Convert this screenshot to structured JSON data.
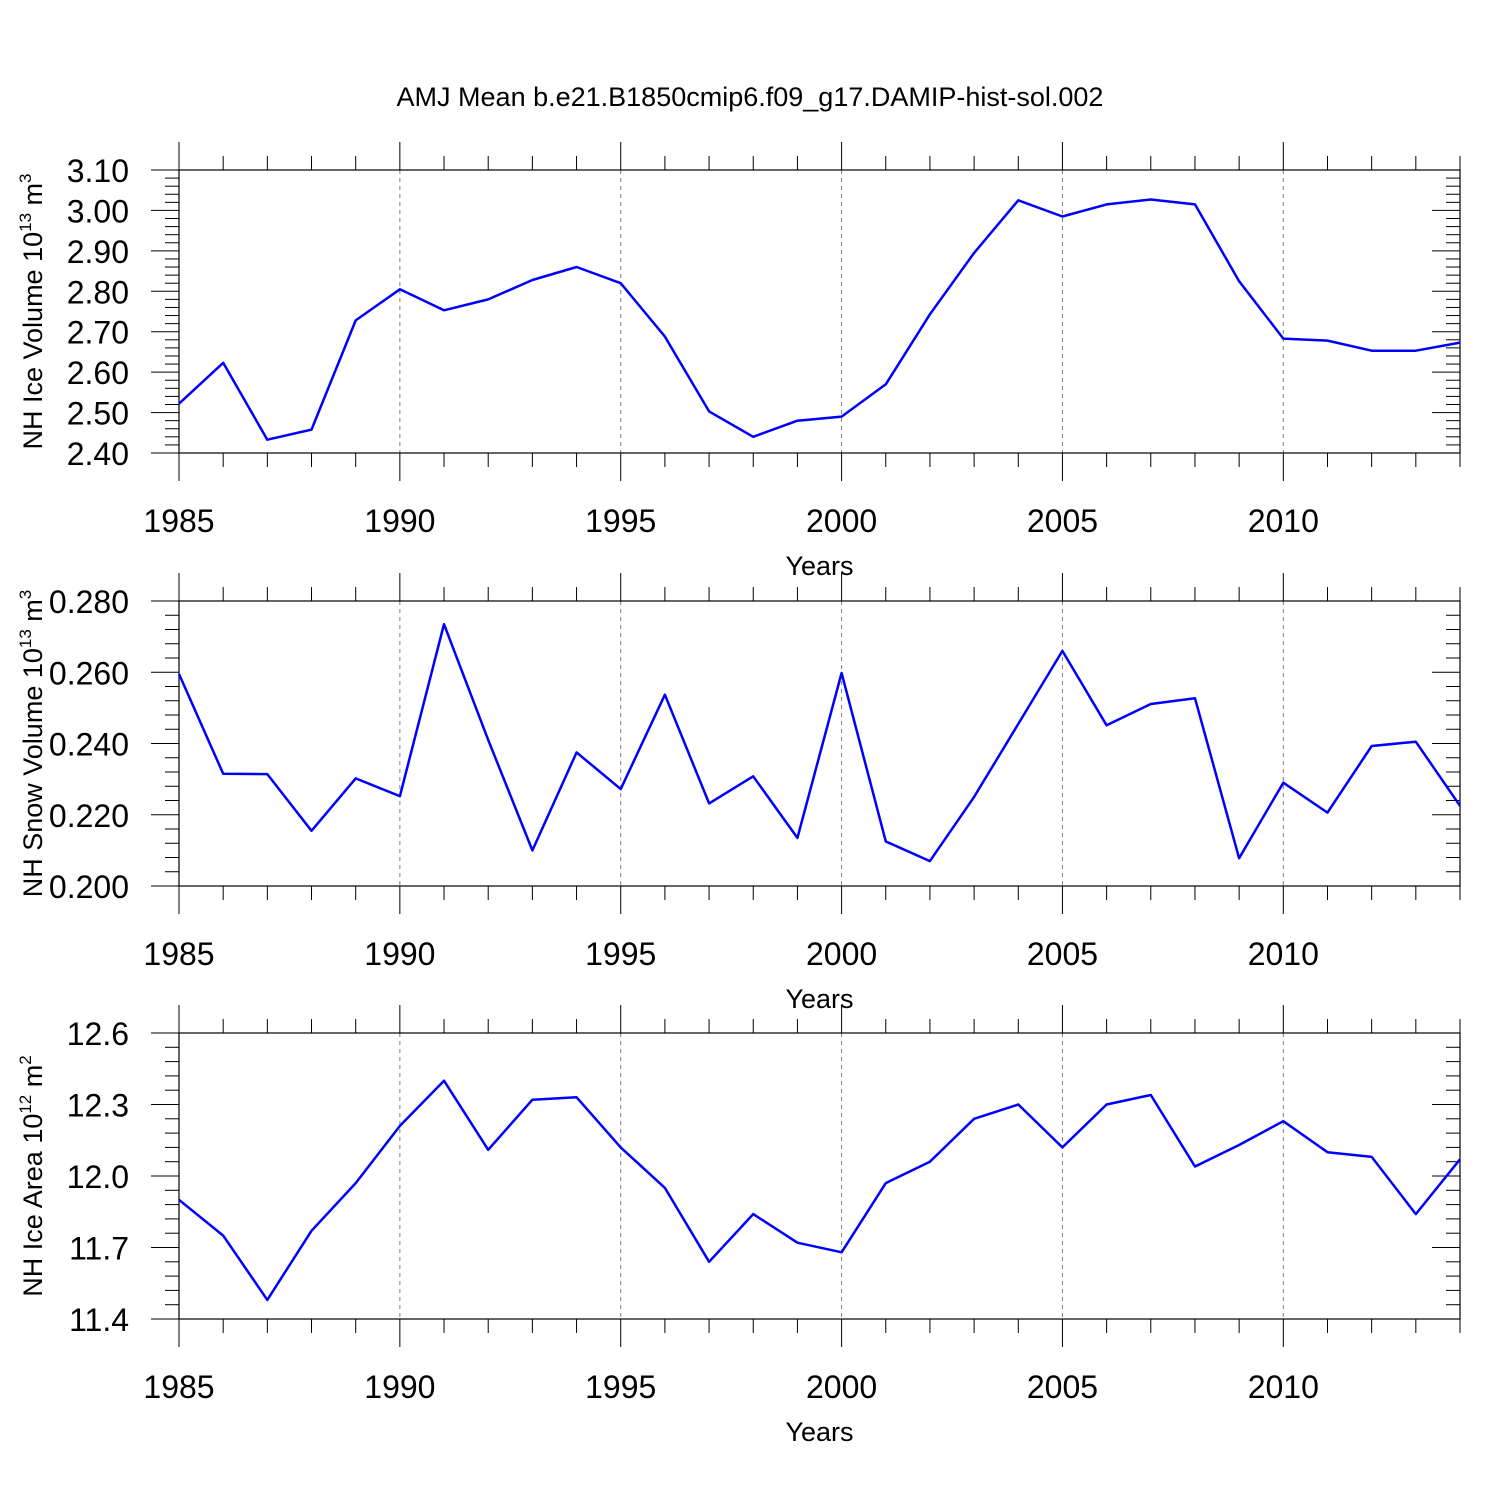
{
  "title": "AMJ Mean b.e21.B1850cmip6.f09_g17.DAMIP-hist-sol.002",
  "line_color": "#0000ff",
  "chart_data": [
    {
      "type": "line",
      "ylabel_main": "NH Ice Volume 10",
      "ylabel_exp": "13",
      "ylabel_unit": " m",
      "ylabel_unit_exp": "3",
      "xlabel": "Years",
      "xlim": [
        1985,
        2014
      ],
      "ylim": [
        2.4,
        3.1
      ],
      "yticks": [
        2.4,
        2.5,
        2.6,
        2.7,
        2.8,
        2.9,
        3.0,
        3.1
      ],
      "ytick_labels": [
        "2.40",
        "2.50",
        "2.60",
        "2.70",
        "2.80",
        "2.90",
        "3.00",
        "3.10"
      ],
      "xticks": [
        1985,
        1990,
        1995,
        2000,
        2005,
        2010
      ],
      "xtick_labels": [
        "1985",
        "1990",
        "1995",
        "2000",
        "2005",
        "2010"
      ],
      "gridlines_x": [
        1990,
        1995,
        2000,
        2005,
        2010
      ],
      "x": [
        1985,
        1986,
        1987,
        1988,
        1989,
        1990,
        1991,
        1992,
        1993,
        1994,
        1995,
        1996,
        1997,
        1998,
        1999,
        2000,
        2001,
        2002,
        2003,
        2004,
        2005,
        2006,
        2007,
        2008,
        2009,
        2010,
        2011,
        2012,
        2013,
        2014
      ],
      "values": [
        2.522,
        2.623,
        2.433,
        2.458,
        2.728,
        2.805,
        2.753,
        2.78,
        2.828,
        2.86,
        2.82,
        2.688,
        2.503,
        2.44,
        2.48,
        2.49,
        2.57,
        2.743,
        2.895,
        3.025,
        2.985,
        3.015,
        3.027,
        3.015,
        2.825,
        2.683,
        2.678,
        2.653,
        2.653,
        2.673
      ]
    },
    {
      "type": "line",
      "ylabel_main": "NH Snow Volume 10",
      "ylabel_exp": "13",
      "ylabel_unit": " m",
      "ylabel_unit_exp": "3",
      "xlabel": "Years",
      "xlim": [
        1985,
        2014
      ],
      "ylim": [
        0.2,
        0.28
      ],
      "yticks": [
        0.2,
        0.22,
        0.24,
        0.26,
        0.28
      ],
      "ytick_labels": [
        "0.200",
        "0.220",
        "0.240",
        "0.260",
        "0.280"
      ],
      "xticks": [
        1985,
        1990,
        1995,
        2000,
        2005,
        2010
      ],
      "xtick_labels": [
        "1985",
        "1990",
        "1995",
        "2000",
        "2005",
        "2010"
      ],
      "gridlines_x": [
        1990,
        1995,
        2000,
        2005,
        2010
      ],
      "x": [
        1985,
        1986,
        1987,
        1988,
        1989,
        1990,
        1991,
        1992,
        1993,
        1994,
        1995,
        1996,
        1997,
        1998,
        1999,
        2000,
        2001,
        2002,
        2003,
        2004,
        2005,
        2006,
        2007,
        2008,
        2009,
        2010,
        2011,
        2012,
        2013,
        2014
      ],
      "values": [
        0.2595,
        0.2315,
        0.2314,
        0.2155,
        0.2302,
        0.2252,
        0.2735,
        0.241,
        0.21,
        0.2375,
        0.2272,
        0.2537,
        0.2232,
        0.2308,
        0.2135,
        0.2598,
        0.2125,
        0.207,
        0.225,
        0.2455,
        0.266,
        0.2451,
        0.2511,
        0.2527,
        0.2078,
        0.229,
        0.2206,
        0.2393,
        0.2405,
        0.2225
      ]
    },
    {
      "type": "line",
      "ylabel_main": "NH Ice Area 10",
      "ylabel_exp": "12",
      "ylabel_unit": " m",
      "ylabel_unit_exp": "2",
      "xlabel": "Years",
      "xlim": [
        1985,
        2014
      ],
      "ylim": [
        11.4,
        12.6
      ],
      "yticks": [
        11.4,
        11.7,
        12.0,
        12.3,
        12.6
      ],
      "ytick_labels": [
        "11.4",
        "11.7",
        "12.0",
        "12.3",
        "12.6"
      ],
      "xticks": [
        1985,
        1990,
        1995,
        2000,
        2005,
        2010
      ],
      "xtick_labels": [
        "1985",
        "1990",
        "1995",
        "2000",
        "2005",
        "2010"
      ],
      "gridlines_x": [
        1990,
        1995,
        2000,
        2005,
        2010
      ],
      "x": [
        1985,
        1986,
        1987,
        1988,
        1989,
        1990,
        1991,
        1992,
        1993,
        1994,
        1995,
        1996,
        1997,
        1998,
        1999,
        2000,
        2001,
        2002,
        2003,
        2004,
        2005,
        2006,
        2007,
        2008,
        2009,
        2010,
        2011,
        2012,
        2013,
        2014
      ],
      "values": [
        11.9,
        11.75,
        11.48,
        11.77,
        11.97,
        12.21,
        12.4,
        12.11,
        12.32,
        12.33,
        12.12,
        11.95,
        11.64,
        11.84,
        11.72,
        11.68,
        11.97,
        12.06,
        12.24,
        12.3,
        12.12,
        12.3,
        12.34,
        12.04,
        12.13,
        12.23,
        12.1,
        12.08,
        11.84,
        12.07
      ]
    }
  ]
}
